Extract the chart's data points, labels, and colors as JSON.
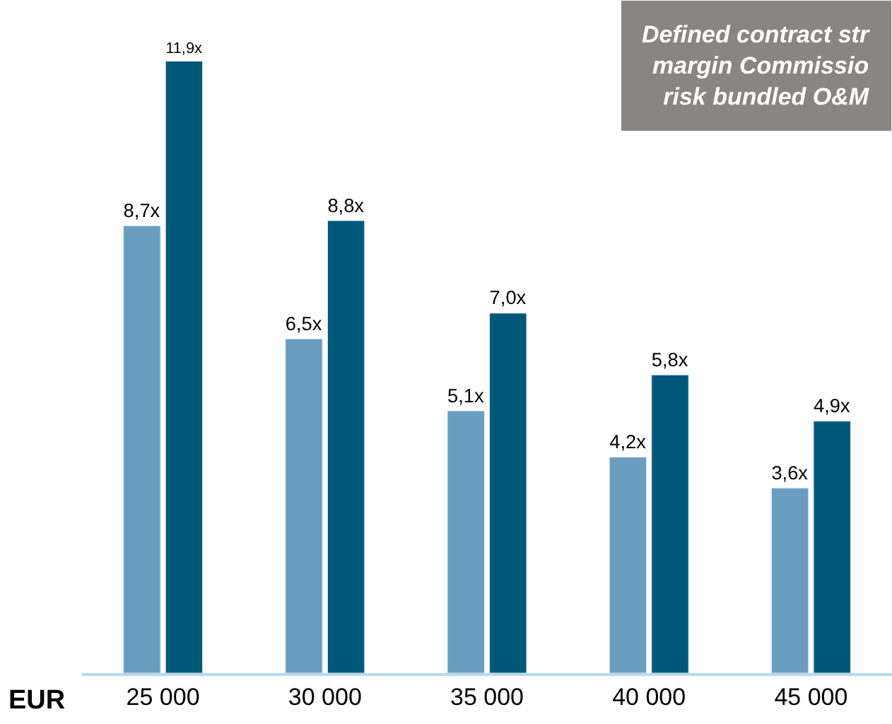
{
  "chart_data": {
    "type": "bar",
    "xlabel": "EUR",
    "categories": [
      "25 000",
      "30 000",
      "35 000",
      "40 000",
      "45 000"
    ],
    "series": [
      {
        "color": "#6a9ec0",
        "values": [
          8.7,
          6.5,
          5.1,
          4.2,
          3.6
        ],
        "value_labels": [
          "8,7x",
          "6,5x",
          "5,1x",
          "4,2x",
          "3,6x"
        ]
      },
      {
        "color": "#005878",
        "values": [
          11.9,
          8.8,
          7.0,
          5.8,
          4.9
        ],
        "value_labels": [
          "11,9x",
          "8,8x",
          "7,0x",
          "5,8x",
          "4,9x"
        ]
      }
    ],
    "annotations": [
      "Defined contract str\nmargin Commissio\nrisk bundled O&M"
    ],
    "legend": false
  }
}
